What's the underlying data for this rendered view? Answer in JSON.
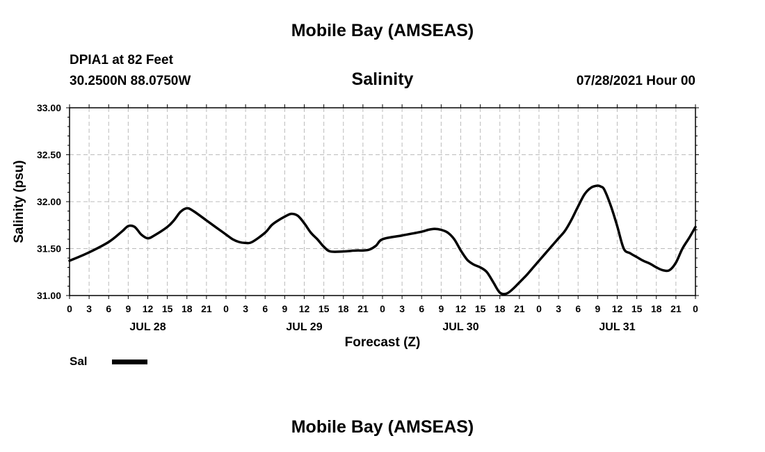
{
  "page_title": "Mobile Bay (AMSEAS)",
  "footer_title": "Mobile Bay (AMSEAS)",
  "station": {
    "name_depth": "DPIA1 at 82 Feet",
    "coords": "30.2500N  88.0750W"
  },
  "timestamp": "07/28/2021 Hour 00",
  "chart_data": {
    "type": "line",
    "title": "Salinity",
    "xlabel": "Forecast (Z)",
    "ylabel": "Salinity (psu)",
    "ylim": [
      31.0,
      33.0
    ],
    "xlim": [
      0,
      96
    ],
    "y_ticks": [
      "31.00",
      "31.50",
      "32.00",
      "32.50",
      "33.00"
    ],
    "x_tick_labels": [
      "0",
      "3",
      "6",
      "9",
      "12",
      "15",
      "18",
      "21",
      "0",
      "3",
      "6",
      "9",
      "12",
      "15",
      "18",
      "21",
      "0",
      "3",
      "6",
      "9",
      "12",
      "15",
      "18",
      "21",
      "0",
      "3",
      "6",
      "9",
      "12",
      "15",
      "18",
      "21",
      "0"
    ],
    "day_labels": [
      "JUL 28",
      "JUL 29",
      "JUL 30",
      "JUL 31"
    ],
    "grid": true,
    "series": [
      {
        "name": "Sal",
        "color": "#000000",
        "x": [
          0,
          3,
          6,
          8,
          9,
          10,
          11,
          12,
          13,
          15,
          16,
          17,
          18,
          19,
          21,
          22,
          23,
          24,
          25,
          26,
          27,
          28,
          30,
          31,
          32,
          33,
          34,
          35,
          36,
          37,
          38,
          39,
          40,
          42,
          44,
          45,
          46,
          47,
          48,
          51,
          54,
          55,
          56,
          57,
          58,
          59,
          60,
          61,
          62,
          63,
          64,
          65,
          66,
          67,
          68,
          69,
          70,
          71,
          72,
          74,
          75,
          76,
          77,
          78,
          79,
          80,
          81,
          81.5,
          82,
          83,
          84,
          85,
          86,
          87,
          88,
          89,
          90,
          91,
          92,
          93,
          94,
          95,
          96
        ],
        "values": [
          31.37,
          31.46,
          31.57,
          31.68,
          31.74,
          31.73,
          31.65,
          31.61,
          31.64,
          31.73,
          31.8,
          31.89,
          31.93,
          31.9,
          31.8,
          31.75,
          31.7,
          31.65,
          31.6,
          31.57,
          31.56,
          31.57,
          31.67,
          31.75,
          31.8,
          31.84,
          31.87,
          31.85,
          31.77,
          31.67,
          31.6,
          31.52,
          31.47,
          31.47,
          31.48,
          31.48,
          31.49,
          31.53,
          31.6,
          31.64,
          31.68,
          31.7,
          31.71,
          31.7,
          31.67,
          31.6,
          31.48,
          31.38,
          31.33,
          31.3,
          31.25,
          31.14,
          31.03,
          31.02,
          31.07,
          31.14,
          31.21,
          31.29,
          31.37,
          31.53,
          31.61,
          31.69,
          31.81,
          31.95,
          32.08,
          32.15,
          32.17,
          32.16,
          32.13,
          31.96,
          31.74,
          31.5,
          31.45,
          31.41,
          31.37,
          31.34,
          31.3,
          31.27,
          31.27,
          31.35,
          31.5,
          31.61,
          31.73
        ]
      }
    ],
    "legend": {
      "position": "bottom-left",
      "label": "Sal"
    }
  }
}
